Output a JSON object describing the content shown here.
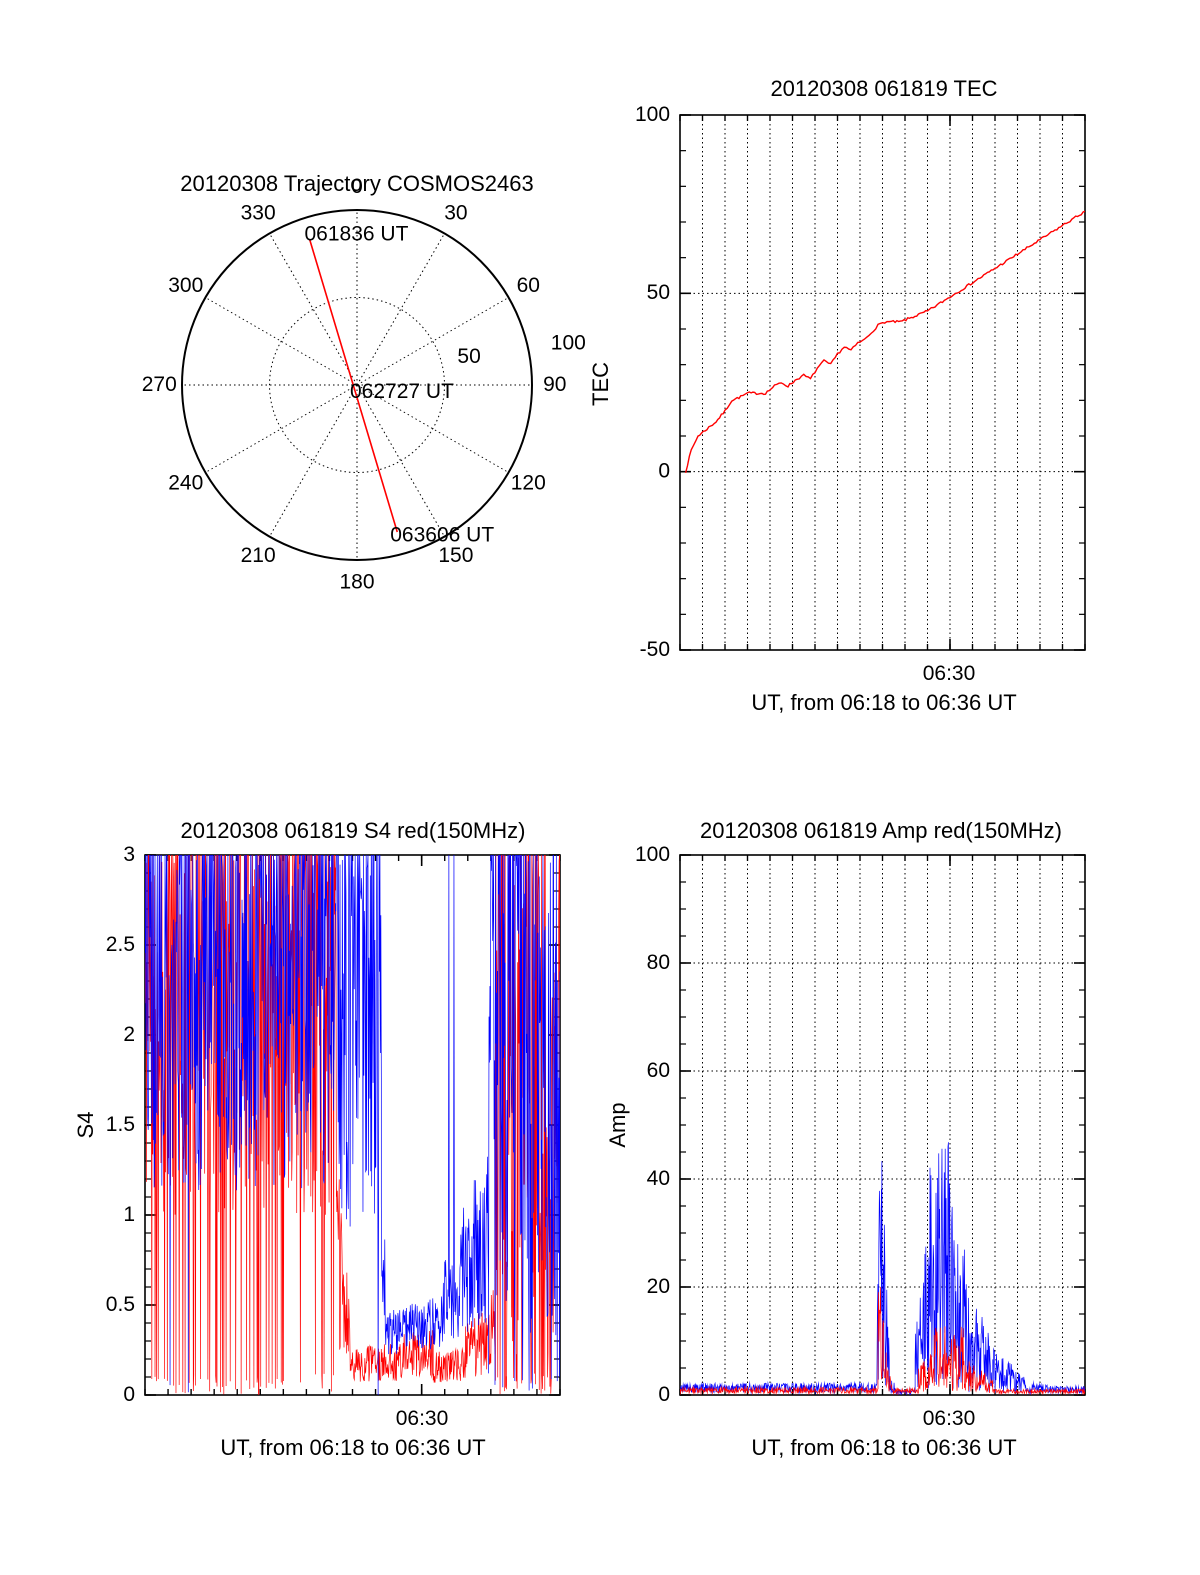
{
  "figure": {
    "background": "#ffffff",
    "accent_red": "#ff0000",
    "accent_blue": "#0000ff"
  },
  "chart_data": [
    {
      "type": "polar-trajectory",
      "title": "20120308 Trajectory COSMOS2463",
      "azimuth_tick_labels": [
        0,
        30,
        60,
        90,
        120,
        150,
        180,
        210,
        240,
        270,
        300,
        330
      ],
      "radial_ticks": [
        50,
        100
      ],
      "radial_max": 100,
      "radial_labels": [
        {
          "label": "50",
          "az": 76,
          "r": 66
        },
        {
          "label": "100",
          "az": 79,
          "r": 123
        }
      ],
      "trajectory_color": "#ff0000",
      "trajectory_points_xy": [
        [
          -27,
          -83
        ],
        [
          23,
          84
        ]
      ],
      "annotations": [
        {
          "text": "061836 UT",
          "x": -30,
          "y": -86
        },
        {
          "text": "062727 UT",
          "x": -4,
          "y": 4
        },
        {
          "text": "063606 UT",
          "x": 19,
          "y": 86
        }
      ]
    },
    {
      "type": "line",
      "title": "20120308 061819 TEC",
      "ylabel": "TEC",
      "xlabel": "UT, from 06:18 to 06:36 UT",
      "xtick": {
        "label": "06:30",
        "minute": 30
      },
      "x_range_minutes": [
        18,
        36
      ],
      "ylim": [
        -50,
        100
      ],
      "yticks": [
        {
          "v": 100,
          "label": "100"
        },
        {
          "v": 50,
          "label": "50"
        },
        {
          "v": 0,
          "label": "0"
        },
        {
          "v": -50,
          "label": "-50"
        }
      ],
      "y_minor_step": 10,
      "grid_y": [
        0,
        50
      ],
      "grid_x_every_minute": true,
      "series": [
        {
          "name": "TEC",
          "color": "#ff0000",
          "seed": 7,
          "jitter": 0.7,
          "points": [
            [
              18.25,
              0
            ],
            [
              18.5,
              6
            ],
            [
              18.8,
              10
            ],
            [
              19.2,
              12
            ],
            [
              19.6,
              14
            ],
            [
              20.0,
              17
            ],
            [
              20.3,
              20
            ],
            [
              20.7,
              21
            ],
            [
              21.0,
              22
            ],
            [
              21.4,
              22
            ],
            [
              21.8,
              22
            ],
            [
              22.2,
              24
            ],
            [
              22.5,
              25
            ],
            [
              22.8,
              24
            ],
            [
              23.2,
              26
            ],
            [
              23.5,
              27
            ],
            [
              23.8,
              26
            ],
            [
              24.1,
              29
            ],
            [
              24.4,
              31
            ],
            [
              24.7,
              30
            ],
            [
              25.0,
              33
            ],
            [
              25.3,
              35
            ],
            [
              25.6,
              34
            ],
            [
              25.9,
              36
            ],
            [
              26.2,
              37
            ],
            [
              26.5,
              39
            ],
            [
              26.8,
              41
            ],
            [
              27.1,
              42
            ],
            [
              27.4,
              42
            ],
            [
              27.8,
              42
            ],
            [
              28.2,
              43
            ],
            [
              28.6,
              44
            ],
            [
              29.0,
              45
            ],
            [
              29.5,
              47
            ],
            [
              30.0,
              49
            ],
            [
              30.5,
              51
            ],
            [
              31.0,
              53
            ],
            [
              31.5,
              55
            ],
            [
              32.0,
              57
            ],
            [
              32.5,
              59
            ],
            [
              33.0,
              61
            ],
            [
              33.5,
              63
            ],
            [
              34.0,
              65
            ],
            [
              34.5,
              67
            ],
            [
              35.0,
              69
            ],
            [
              35.5,
              71
            ],
            [
              36.0,
              73
            ]
          ]
        }
      ]
    },
    {
      "type": "noisy-line",
      "title": "20120308 061819 S4 red(150MHz)",
      "ylabel": "S4",
      "xlabel": "UT, from 06:18 to 06:36 UT",
      "xtick": {
        "label": "06:30",
        "minute": 30
      },
      "x_range_minutes": [
        18,
        36
      ],
      "ylim": [
        0,
        3
      ],
      "yticks": [
        {
          "v": 0,
          "label": "0"
        },
        {
          "v": 0.5,
          "label": "0.5"
        },
        {
          "v": 1,
          "label": "1"
        },
        {
          "v": 1.5,
          "label": "1.5"
        },
        {
          "v": 2,
          "label": "2"
        },
        {
          "v": 2.5,
          "label": "2.5"
        },
        {
          "v": 3,
          "label": "3"
        }
      ],
      "y_minor_step": 0.1,
      "grid_y": [],
      "grid_x_every_minute": false,
      "series": [
        {
          "name": "S4 red 150MHz",
          "color": "#ff0000",
          "seed": 11,
          "segments": [
            [
              18,
              26.3,
              1.0,
              3.3,
              1.0,
              3.3,
              0.1,
              0.18
            ],
            [
              26.3,
              26.9,
              0.15,
              1.4,
              0.08,
              0.5,
              0.02,
              0
            ],
            [
              26.9,
              29.2,
              0.07,
              0.26,
              0.08,
              0.3,
              0,
              0
            ],
            [
              29.2,
              30.5,
              0.1,
              0.36,
              0.1,
              0.36,
              0,
              0
            ],
            [
              30.5,
              31.9,
              0.06,
              0.24,
              0.07,
              0.26,
              0,
              0
            ],
            [
              31.9,
              33.2,
              0.08,
              0.4,
              0.12,
              0.6,
              0.01,
              0.01
            ],
            [
              33.2,
              35.1,
              0.2,
              3.3,
              0.2,
              3.3,
              0.15,
              0.12
            ],
            [
              35.1,
              36,
              0.1,
              1.2,
              0.15,
              3.3,
              0.18,
              0.1
            ]
          ]
        },
        {
          "name": "S4 blue",
          "color": "#0000ff",
          "seed": 22,
          "segments": [
            [
              18,
              26.2,
              1.15,
              3.25,
              1.1,
              3.25,
              0.012,
              0.2
            ],
            [
              26.2,
              28.25,
              0.95,
              3.3,
              0.9,
              3.3,
              0.01,
              0.12
            ],
            [
              28.25,
              28.55,
              0.3,
              1.3,
              0.24,
              0.6,
              0,
              0
            ],
            [
              28.55,
              30.9,
              0.22,
              0.48,
              0.26,
              0.55,
              0,
              0
            ],
            [
              30.9,
              32.9,
              0.28,
              0.75,
              0.4,
              1.4,
              0,
              0.01
            ],
            [
              32.9,
              34.7,
              0.5,
              3.3,
              0.5,
              3.3,
              0.05,
              0.28
            ],
            [
              34.7,
              36,
              0.25,
              2.8,
              0.3,
              3.1,
              0.12,
              0.12
            ]
          ]
        }
      ]
    },
    {
      "type": "noisy-line",
      "title": "20120308 061819 Amp red(150MHz)",
      "ylabel": "Amp",
      "xlabel": "UT, from 06:18 to 06:36 UT",
      "xtick": {
        "label": "06:30",
        "minute": 30
      },
      "x_range_minutes": [
        18,
        36
      ],
      "ylim": [
        0,
        100
      ],
      "yticks": [
        {
          "v": 0,
          "label": "0"
        },
        {
          "v": 20,
          "label": "20"
        },
        {
          "v": 40,
          "label": "40"
        },
        {
          "v": 60,
          "label": "60"
        },
        {
          "v": 80,
          "label": "80"
        },
        {
          "v": 100,
          "label": "100"
        }
      ],
      "y_minor_step": 5,
      "grid_y": [
        20,
        40,
        60,
        80
      ],
      "grid_x_every_minute": true,
      "series": [
        {
          "name": "Amp blue",
          "color": "#0000ff",
          "seed": 33,
          "segments": [
            [
              18,
              26.75,
              0.4,
              2.2,
              0.4,
              2.2,
              0,
              0
            ],
            [
              26.75,
              26.95,
              1,
              22,
              2,
              54,
              0,
              0
            ],
            [
              26.95,
              27.3,
              2,
              50,
              1,
              8,
              0,
              0
            ],
            [
              27.3,
              27.6,
              0.3,
              3,
              0.2,
              2,
              0,
              0
            ],
            [
              27.6,
              28.45,
              0.05,
              1.0,
              0.05,
              1.0,
              0,
              0
            ],
            [
              28.45,
              29.05,
              0.5,
              12,
              1,
              32,
              0,
              0
            ],
            [
              29.05,
              29.95,
              1,
              44,
              1,
              47,
              0,
              0
            ],
            [
              29.95,
              30.7,
              0.8,
              40,
              0.6,
              26,
              0,
              0
            ],
            [
              30.7,
              31.9,
              0.5,
              22,
              0.4,
              11,
              0,
              0
            ],
            [
              31.9,
              33.3,
              0.3,
              9,
              0.3,
              3.5,
              0,
              0
            ],
            [
              33.3,
              34.4,
              0.3,
              2.5,
              0.3,
              1.8,
              0,
              0
            ],
            [
              34.4,
              36,
              0.3,
              1.7,
              0.3,
              1.7,
              0,
              0
            ]
          ]
        },
        {
          "name": "Amp red 150MHz",
          "color": "#ff0000",
          "seed": 44,
          "segments": [
            [
              18,
              26.8,
              0.3,
              1.4,
              0.3,
              1.4,
              0,
              0
            ],
            [
              26.8,
              27.05,
              0.5,
              18,
              1,
              30,
              0,
              0
            ],
            [
              27.05,
              27.4,
              0.5,
              12,
              0.3,
              2,
              0,
              0
            ],
            [
              27.4,
              28.6,
              0.2,
              1.2,
              0.2,
              1.2,
              0,
              0
            ],
            [
              28.6,
              29.3,
              0.3,
              5,
              0.5,
              9,
              0,
              0
            ],
            [
              29.3,
              30.6,
              0.5,
              13,
              0.5,
              13,
              0,
              0
            ],
            [
              30.6,
              31.9,
              0.4,
              7,
              0.3,
              3,
              0,
              0
            ],
            [
              31.9,
              36,
              0.25,
              1.1,
              0.25,
              1.1,
              0,
              0
            ]
          ]
        }
      ]
    }
  ]
}
